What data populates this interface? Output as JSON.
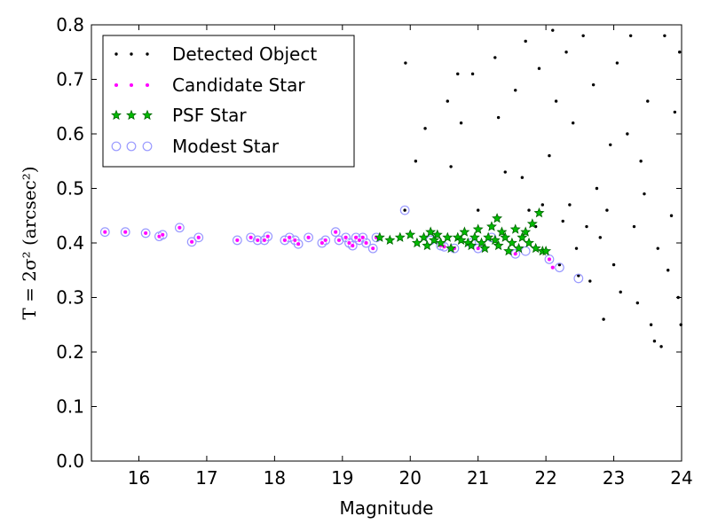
{
  "chart_data": {
    "type": "scatter",
    "xlabel": "Magnitude",
    "ylabel": "T = 2σ² (arcsec²)",
    "xlim": [
      15.3,
      24
    ],
    "ylim": [
      0.0,
      0.8
    ],
    "xticks": [
      "16",
      "17",
      "18",
      "19",
      "20",
      "21",
      "22",
      "23",
      "24"
    ],
    "yticks": [
      "0.0",
      "0.1",
      "0.2",
      "0.3",
      "0.4",
      "0.5",
      "0.6",
      "0.7",
      "0.8"
    ],
    "legend_position": "top-left",
    "colors": {
      "detected": "#000000",
      "candidate": "#ff00ff",
      "psf_fill": "#00bb00",
      "psf_edge": "#006400",
      "modest": "#9999ff"
    },
    "series": [
      {
        "name": "Detected Object",
        "marker": "dot",
        "points": [
          [
            19.92,
            0.46
          ],
          [
            19.93,
            0.73
          ],
          [
            20.08,
            0.55
          ],
          [
            20.22,
            0.61
          ],
          [
            20.6,
            0.54
          ],
          [
            20.55,
            0.66
          ],
          [
            20.7,
            0.71
          ],
          [
            20.75,
            0.62
          ],
          [
            20.92,
            0.71
          ],
          [
            21.0,
            0.46
          ],
          [
            21.25,
            0.74
          ],
          [
            21.3,
            0.63
          ],
          [
            21.4,
            0.53
          ],
          [
            21.55,
            0.68
          ],
          [
            21.65,
            0.52
          ],
          [
            21.7,
            0.77
          ],
          [
            21.75,
            0.46
          ],
          [
            21.85,
            0.43
          ],
          [
            21.9,
            0.72
          ],
          [
            21.95,
            0.47
          ],
          [
            22.05,
            0.56
          ],
          [
            22.1,
            0.79
          ],
          [
            22.15,
            0.66
          ],
          [
            22.2,
            0.36
          ],
          [
            22.25,
            0.44
          ],
          [
            22.3,
            0.75
          ],
          [
            22.35,
            0.47
          ],
          [
            22.4,
            0.62
          ],
          [
            22.45,
            0.39
          ],
          [
            22.48,
            0.34
          ],
          [
            22.55,
            0.78
          ],
          [
            22.6,
            0.43
          ],
          [
            22.65,
            0.33
          ],
          [
            22.7,
            0.69
          ],
          [
            22.75,
            0.5
          ],
          [
            22.8,
            0.41
          ],
          [
            22.85,
            0.26
          ],
          [
            22.9,
            0.46
          ],
          [
            22.95,
            0.58
          ],
          [
            23.0,
            0.36
          ],
          [
            23.05,
            0.73
          ],
          [
            23.1,
            0.31
          ],
          [
            23.2,
            0.6
          ],
          [
            23.25,
            0.78
          ],
          [
            23.3,
            0.43
          ],
          [
            23.35,
            0.29
          ],
          [
            23.4,
            0.55
          ],
          [
            23.45,
            0.49
          ],
          [
            23.5,
            0.66
          ],
          [
            23.55,
            0.25
          ],
          [
            23.6,
            0.22
          ],
          [
            23.65,
            0.39
          ],
          [
            23.7,
            0.21
          ],
          [
            23.75,
            0.78
          ],
          [
            23.8,
            0.35
          ],
          [
            23.85,
            0.45
          ],
          [
            23.9,
            0.64
          ],
          [
            23.95,
            0.3
          ],
          [
            23.97,
            0.75
          ],
          [
            23.99,
            0.25
          ]
        ]
      },
      {
        "name": "Candidate Star",
        "marker": "small-circle",
        "points": [
          [
            15.5,
            0.42
          ],
          [
            15.8,
            0.42
          ],
          [
            16.1,
            0.418
          ],
          [
            16.3,
            0.412
          ],
          [
            16.35,
            0.415
          ],
          [
            16.6,
            0.428
          ],
          [
            16.78,
            0.402
          ],
          [
            16.88,
            0.41
          ],
          [
            17.45,
            0.405
          ],
          [
            17.65,
            0.41
          ],
          [
            17.75,
            0.405
          ],
          [
            17.85,
            0.405
          ],
          [
            17.9,
            0.412
          ],
          [
            18.15,
            0.405
          ],
          [
            18.22,
            0.41
          ],
          [
            18.3,
            0.405
          ],
          [
            18.35,
            0.398
          ],
          [
            18.5,
            0.41
          ],
          [
            18.7,
            0.4
          ],
          [
            18.75,
            0.405
          ],
          [
            18.9,
            0.42
          ],
          [
            18.95,
            0.405
          ],
          [
            19.05,
            0.41
          ],
          [
            19.1,
            0.4
          ],
          [
            19.15,
            0.395
          ],
          [
            19.2,
            0.41
          ],
          [
            19.25,
            0.405
          ],
          [
            19.3,
            0.41
          ],
          [
            19.35,
            0.4
          ],
          [
            19.45,
            0.39
          ],
          [
            19.5,
            0.41
          ],
          [
            20.45,
            0.395
          ],
          [
            20.5,
            0.393
          ],
          [
            20.65,
            0.39
          ],
          [
            21.0,
            0.39
          ],
          [
            21.55,
            0.38
          ],
          [
            22.05,
            0.37
          ],
          [
            22.1,
            0.355
          ]
        ]
      },
      {
        "name": "PSF Star",
        "marker": "star",
        "points": [
          [
            19.55,
            0.41
          ],
          [
            19.7,
            0.405
          ],
          [
            19.85,
            0.41
          ],
          [
            20.0,
            0.415
          ],
          [
            20.1,
            0.4
          ],
          [
            20.2,
            0.41
          ],
          [
            20.25,
            0.395
          ],
          [
            20.3,
            0.42
          ],
          [
            20.35,
            0.405
          ],
          [
            20.4,
            0.415
          ],
          [
            20.45,
            0.4
          ],
          [
            20.55,
            0.41
          ],
          [
            20.6,
            0.39
          ],
          [
            20.7,
            0.41
          ],
          [
            20.75,
            0.405
          ],
          [
            20.8,
            0.42
          ],
          [
            20.85,
            0.4
          ],
          [
            20.9,
            0.395
          ],
          [
            20.95,
            0.41
          ],
          [
            21.0,
            0.425
          ],
          [
            21.05,
            0.4
          ],
          [
            21.1,
            0.39
          ],
          [
            21.15,
            0.41
          ],
          [
            21.2,
            0.43
          ],
          [
            21.25,
            0.405
          ],
          [
            21.3,
            0.395
          ],
          [
            21.35,
            0.42
          ],
          [
            21.4,
            0.41
          ],
          [
            21.45,
            0.385
          ],
          [
            21.5,
            0.4
          ],
          [
            21.55,
            0.425
          ],
          [
            21.6,
            0.39
          ],
          [
            21.65,
            0.41
          ],
          [
            21.7,
            0.42
          ],
          [
            21.75,
            0.4
          ],
          [
            21.8,
            0.435
          ],
          [
            21.85,
            0.39
          ],
          [
            21.9,
            0.455
          ],
          [
            21.95,
            0.385
          ],
          [
            22.0,
            0.385
          ],
          [
            21.28,
            0.445
          ]
        ]
      },
      {
        "name": "Modest Star",
        "marker": "open-circle",
        "points": [
          [
            15.5,
            0.42
          ],
          [
            15.8,
            0.42
          ],
          [
            16.1,
            0.418
          ],
          [
            16.3,
            0.412
          ],
          [
            16.35,
            0.415
          ],
          [
            16.6,
            0.428
          ],
          [
            16.78,
            0.402
          ],
          [
            16.88,
            0.41
          ],
          [
            17.45,
            0.405
          ],
          [
            17.65,
            0.41
          ],
          [
            17.75,
            0.405
          ],
          [
            17.85,
            0.405
          ],
          [
            17.9,
            0.412
          ],
          [
            18.15,
            0.405
          ],
          [
            18.22,
            0.41
          ],
          [
            18.3,
            0.405
          ],
          [
            18.35,
            0.398
          ],
          [
            18.5,
            0.41
          ],
          [
            18.7,
            0.4
          ],
          [
            18.75,
            0.405
          ],
          [
            18.9,
            0.42
          ],
          [
            18.95,
            0.405
          ],
          [
            19.05,
            0.41
          ],
          [
            19.1,
            0.4
          ],
          [
            19.15,
            0.395
          ],
          [
            19.2,
            0.41
          ],
          [
            19.25,
            0.405
          ],
          [
            19.3,
            0.41
          ],
          [
            19.35,
            0.4
          ],
          [
            19.45,
            0.39
          ],
          [
            19.5,
            0.41
          ],
          [
            19.92,
            0.46
          ],
          [
            20.3,
            0.405
          ],
          [
            20.45,
            0.395
          ],
          [
            20.5,
            0.393
          ],
          [
            20.65,
            0.39
          ],
          [
            20.9,
            0.4
          ],
          [
            21.0,
            0.39
          ],
          [
            21.2,
            0.41
          ],
          [
            21.55,
            0.38
          ],
          [
            21.7,
            0.385
          ],
          [
            22.05,
            0.37
          ],
          [
            22.2,
            0.355
          ],
          [
            22.48,
            0.335
          ]
        ]
      }
    ]
  }
}
